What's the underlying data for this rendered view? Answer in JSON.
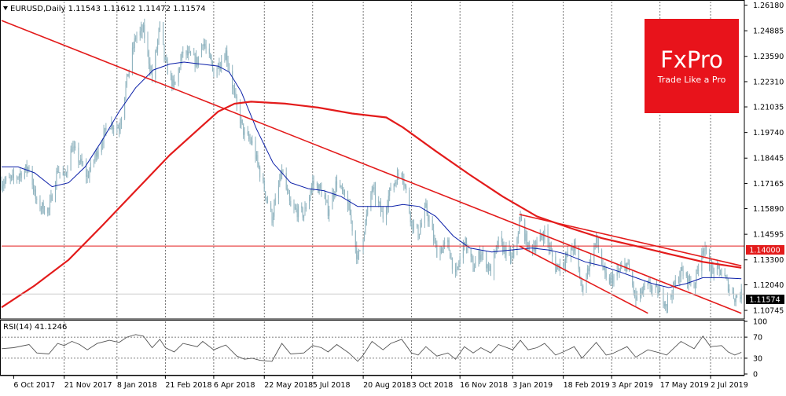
{
  "header": {
    "symbol_line": "EURUSD,Daily  1.11543 1.11612 1.11472 1.11574"
  },
  "logo": {
    "brand": "FxPro",
    "tagline": "Trade Like a Pro",
    "bg_color": "#e8131b"
  },
  "colors": {
    "candles": "#8fb3bf",
    "ma_fast": "#0a1ea8",
    "ma_slow": "#e31b1b",
    "trendlines": "#e31b1b",
    "rsi_line": "#555555",
    "grid": "#555555"
  },
  "price_labels": {
    "level": "1.14000",
    "current": "1.11574"
  },
  "chart_data": [
    {
      "type": "line",
      "name": "price",
      "title": "EURUSD,Daily",
      "grid": true,
      "y_axis_position": "right",
      "ylim": [
        1.1035,
        1.2636
      ],
      "y_ticks": [
        "1.26180",
        "1.24885",
        "1.23590",
        "1.22310",
        "1.21035",
        "1.19740",
        "1.18445",
        "1.17165",
        "1.15890",
        "1.14595",
        "1.13300",
        "1.12040",
        "1.10745"
      ],
      "x_tick_labels": [
        "6 Oct 2017",
        "21 Nov 2017",
        "8 Jan 2018",
        "21 Feb 2018",
        "6 Apr 2018",
        "22 May 2018",
        "5 Jul 2018",
        "20 Aug 2018",
        "3 Oct 2018",
        "16 Nov 2018",
        "3 Jan 2019",
        "18 Feb 2019",
        "3 Apr 2019",
        "17 May 2019",
        "2 Jul 2019"
      ],
      "x_range": [
        "2017-09-25",
        "2019-08-01"
      ],
      "price_path": [
        [
          "2017-09-25",
          1.172
        ],
        [
          "2017-10-06",
          1.174
        ],
        [
          "2017-10-20",
          1.18
        ],
        [
          "2017-10-27",
          1.161
        ],
        [
          "2017-11-07",
          1.158
        ],
        [
          "2017-11-15",
          1.179
        ],
        [
          "2017-11-21",
          1.174
        ],
        [
          "2017-11-28",
          1.19
        ],
        [
          "2017-12-05",
          1.183
        ],
        [
          "2017-12-12",
          1.175
        ],
        [
          "2017-12-21",
          1.188
        ],
        [
          "2018-01-01",
          1.202
        ],
        [
          "2018-01-10",
          1.2
        ],
        [
          "2018-01-17",
          1.224
        ],
        [
          "2018-01-25",
          1.246
        ],
        [
          "2018-02-01",
          1.249
        ],
        [
          "2018-02-09",
          1.225
        ],
        [
          "2018-02-16",
          1.251
        ],
        [
          "2018-02-21",
          1.232
        ],
        [
          "2018-03-01",
          1.22
        ],
        [
          "2018-03-09",
          1.238
        ],
        [
          "2018-03-22",
          1.233
        ],
        [
          "2018-03-27",
          1.244
        ],
        [
          "2018-04-06",
          1.228
        ],
        [
          "2018-04-13",
          1.234
        ],
        [
          "2018-04-17",
          1.238
        ],
        [
          "2018-04-27",
          1.21
        ],
        [
          "2018-05-04",
          1.196
        ],
        [
          "2018-05-11",
          1.192
        ],
        [
          "2018-05-18",
          1.177
        ],
        [
          "2018-05-29",
          1.154
        ],
        [
          "2018-06-07",
          1.178
        ],
        [
          "2018-06-15",
          1.159
        ],
        [
          "2018-06-27",
          1.156
        ],
        [
          "2018-07-05",
          1.172
        ],
        [
          "2018-07-13",
          1.168
        ],
        [
          "2018-07-19",
          1.158
        ],
        [
          "2018-07-27",
          1.173
        ],
        [
          "2018-08-07",
          1.159
        ],
        [
          "2018-08-15",
          1.133
        ],
        [
          "2018-08-20",
          1.146
        ],
        [
          "2018-08-28",
          1.169
        ],
        [
          "2018-09-07",
          1.155
        ],
        [
          "2018-09-14",
          1.169
        ],
        [
          "2018-09-24",
          1.179
        ],
        [
          "2018-10-03",
          1.152
        ],
        [
          "2018-10-09",
          1.146
        ],
        [
          "2018-10-16",
          1.159
        ],
        [
          "2018-10-26",
          1.137
        ],
        [
          "2018-11-05",
          1.141
        ],
        [
          "2018-11-12",
          1.124
        ],
        [
          "2018-11-20",
          1.143
        ],
        [
          "2018-11-28",
          1.129
        ],
        [
          "2018-12-05",
          1.137
        ],
        [
          "2018-12-14",
          1.127
        ],
        [
          "2018-12-21",
          1.142
        ],
        [
          "2019-01-03",
          1.133
        ],
        [
          "2019-01-10",
          1.154
        ],
        [
          "2019-01-17",
          1.139
        ],
        [
          "2019-01-25",
          1.141
        ],
        [
          "2019-02-01",
          1.147
        ],
        [
          "2019-02-11",
          1.129
        ],
        [
          "2019-02-18",
          1.132
        ],
        [
          "2019-02-28",
          1.14
        ],
        [
          "2019-03-07",
          1.118
        ],
        [
          "2019-03-20",
          1.143
        ],
        [
          "2019-03-29",
          1.122
        ],
        [
          "2019-04-03",
          1.123
        ],
        [
          "2019-04-17",
          1.131
        ],
        [
          "2019-04-25",
          1.113
        ],
        [
          "2019-05-06",
          1.12
        ],
        [
          "2019-05-17",
          1.116
        ],
        [
          "2019-05-23",
          1.111
        ],
        [
          "2019-06-05",
          1.127
        ],
        [
          "2019-06-17",
          1.12
        ],
        [
          "2019-06-25",
          1.14
        ],
        [
          "2019-07-02",
          1.128
        ],
        [
          "2019-07-12",
          1.127
        ],
        [
          "2019-07-18",
          1.12
        ],
        [
          "2019-07-24",
          1.114
        ],
        [
          "2019-07-30",
          1.1157
        ]
      ],
      "series": [
        {
          "key": "ma_fast",
          "points": [
            [
              "2017-09-25",
              1.18
            ],
            [
              "2017-10-10",
              1.18
            ],
            [
              "2017-10-25",
              1.177
            ],
            [
              "2017-11-10",
              1.17
            ],
            [
              "2017-11-25",
              1.172
            ],
            [
              "2017-12-10",
              1.18
            ],
            [
              "2017-12-25",
              1.193
            ],
            [
              "2018-01-10",
              1.208
            ],
            [
              "2018-01-25",
              1.22
            ],
            [
              "2018-02-10",
              1.229
            ],
            [
              "2018-02-25",
              1.232
            ],
            [
              "2018-03-10",
              1.233
            ],
            [
              "2018-03-25",
              1.232
            ],
            [
              "2018-04-10",
              1.231
            ],
            [
              "2018-04-20",
              1.228
            ],
            [
              "2018-05-01",
              1.218
            ],
            [
              "2018-05-15",
              1.199
            ],
            [
              "2018-05-30",
              1.182
            ],
            [
              "2018-06-15",
              1.172
            ],
            [
              "2018-07-01",
              1.169
            ],
            [
              "2018-07-15",
              1.168
            ],
            [
              "2018-07-31",
              1.165
            ],
            [
              "2018-08-15",
              1.16
            ],
            [
              "2018-08-30",
              1.16
            ],
            [
              "2018-09-15",
              1.16
            ],
            [
              "2018-09-25",
              1.161
            ],
            [
              "2018-10-10",
              1.16
            ],
            [
              "2018-10-25",
              1.155
            ],
            [
              "2018-11-10",
              1.145
            ],
            [
              "2018-11-25",
              1.139
            ],
            [
              "2018-12-15",
              1.137
            ],
            [
              "2019-01-01",
              1.138
            ],
            [
              "2019-01-20",
              1.139
            ],
            [
              "2019-02-05",
              1.138
            ],
            [
              "2019-02-20",
              1.136
            ],
            [
              "2019-03-10",
              1.132
            ],
            [
              "2019-03-25",
              1.13
            ],
            [
              "2019-04-10",
              1.127
            ],
            [
              "2019-04-25",
              1.124
            ],
            [
              "2019-05-10",
              1.121
            ],
            [
              "2019-05-25",
              1.119
            ],
            [
              "2019-06-10",
              1.121
            ],
            [
              "2019-06-25",
              1.124
            ],
            [
              "2019-07-10",
              1.124
            ],
            [
              "2019-07-30",
              1.1235
            ]
          ]
        },
        {
          "key": "ma_slow",
          "points": [
            [
              "2017-09-25",
              1.109
            ],
            [
              "2017-10-25",
              1.12
            ],
            [
              "2017-11-25",
              1.133
            ],
            [
              "2017-12-25",
              1.15
            ],
            [
              "2018-01-25",
              1.168
            ],
            [
              "2018-02-25",
              1.186
            ],
            [
              "2018-03-25",
              1.2
            ],
            [
              "2018-04-10",
              1.208
            ],
            [
              "2018-04-25",
              1.212
            ],
            [
              "2018-05-10",
              1.213
            ],
            [
              "2018-06-10",
              1.212
            ],
            [
              "2018-07-10",
              1.21
            ],
            [
              "2018-08-10",
              1.207
            ],
            [
              "2018-09-10",
              1.205
            ],
            [
              "2018-09-25",
              1.2
            ],
            [
              "2018-10-25",
              1.188
            ],
            [
              "2018-11-25",
              1.176
            ],
            [
              "2018-12-25",
              1.165
            ],
            [
              "2019-01-25",
              1.155
            ],
            [
              "2019-02-25",
              1.149
            ],
            [
              "2019-03-25",
              1.144
            ],
            [
              "2019-04-25",
              1.14
            ],
            [
              "2019-05-25",
              1.136
            ],
            [
              "2019-06-25",
              1.132
            ],
            [
              "2019-07-30",
              1.129
            ]
          ]
        },
        {
          "key": "trendlines",
          "segments": [
            [
              [
                "2017-09-25",
                1.254
              ],
              [
                "2019-07-30",
                1.106
              ]
            ],
            [
              [
                "2019-01-09",
                1.156
              ],
              [
                "2019-07-30",
                1.13
              ]
            ],
            [
              [
                "2019-01-09",
                1.14
              ],
              [
                "2019-05-06",
                1.106
              ]
            ]
          ]
        }
      ],
      "level_line": 1.14,
      "current_price": 1.11574
    },
    {
      "type": "line",
      "name": "RSI",
      "title": "RSI(14) 41.1246",
      "ylim": [
        0,
        100
      ],
      "y_ticks": [
        "100",
        "70",
        "30",
        "0"
      ],
      "levels": [
        30,
        70
      ],
      "points": [
        [
          "2017-09-25",
          48
        ],
        [
          "2017-10-06",
          50
        ],
        [
          "2017-10-20",
          56
        ],
        [
          "2017-10-27",
          40
        ],
        [
          "2017-11-07",
          38
        ],
        [
          "2017-11-15",
          58
        ],
        [
          "2017-11-21",
          54
        ],
        [
          "2017-11-28",
          62
        ],
        [
          "2017-12-05",
          56
        ],
        [
          "2017-12-12",
          46
        ],
        [
          "2017-12-21",
          58
        ],
        [
          "2018-01-01",
          64
        ],
        [
          "2018-01-10",
          60
        ],
        [
          "2018-01-17",
          70
        ],
        [
          "2018-01-25",
          75
        ],
        [
          "2018-02-01",
          72
        ],
        [
          "2018-02-09",
          50
        ],
        [
          "2018-02-16",
          66
        ],
        [
          "2018-02-21",
          50
        ],
        [
          "2018-03-01",
          42
        ],
        [
          "2018-03-09",
          58
        ],
        [
          "2018-03-22",
          52
        ],
        [
          "2018-03-27",
          62
        ],
        [
          "2018-04-06",
          46
        ],
        [
          "2018-04-13",
          52
        ],
        [
          "2018-04-17",
          55
        ],
        [
          "2018-04-27",
          34
        ],
        [
          "2018-05-04",
          28
        ],
        [
          "2018-05-11",
          30
        ],
        [
          "2018-05-18",
          26
        ],
        [
          "2018-05-29",
          24
        ],
        [
          "2018-06-07",
          58
        ],
        [
          "2018-06-15",
          38
        ],
        [
          "2018-06-27",
          40
        ],
        [
          "2018-07-05",
          54
        ],
        [
          "2018-07-13",
          50
        ],
        [
          "2018-07-19",
          42
        ],
        [
          "2018-07-27",
          56
        ],
        [
          "2018-08-07",
          40
        ],
        [
          "2018-08-15",
          24
        ],
        [
          "2018-08-20",
          36
        ],
        [
          "2018-08-28",
          62
        ],
        [
          "2018-09-07",
          46
        ],
        [
          "2018-09-14",
          58
        ],
        [
          "2018-09-24",
          66
        ],
        [
          "2018-10-03",
          40
        ],
        [
          "2018-10-09",
          36
        ],
        [
          "2018-10-16",
          52
        ],
        [
          "2018-10-26",
          34
        ],
        [
          "2018-11-05",
          40
        ],
        [
          "2018-11-12",
          28
        ],
        [
          "2018-11-20",
          52
        ],
        [
          "2018-11-28",
          40
        ],
        [
          "2018-12-05",
          50
        ],
        [
          "2018-12-14",
          40
        ],
        [
          "2018-12-21",
          56
        ],
        [
          "2019-01-03",
          46
        ],
        [
          "2019-01-10",
          64
        ],
        [
          "2019-01-17",
          46
        ],
        [
          "2019-01-25",
          50
        ],
        [
          "2019-02-01",
          58
        ],
        [
          "2019-02-11",
          36
        ],
        [
          "2019-02-18",
          42
        ],
        [
          "2019-02-28",
          52
        ],
        [
          "2019-03-07",
          30
        ],
        [
          "2019-03-20",
          60
        ],
        [
          "2019-03-29",
          36
        ],
        [
          "2019-04-03",
          38
        ],
        [
          "2019-04-17",
          52
        ],
        [
          "2019-04-25",
          32
        ],
        [
          "2019-05-06",
          46
        ],
        [
          "2019-05-17",
          40
        ],
        [
          "2019-05-23",
          36
        ],
        [
          "2019-06-05",
          62
        ],
        [
          "2019-06-17",
          48
        ],
        [
          "2019-06-25",
          72
        ],
        [
          "2019-07-02",
          52
        ],
        [
          "2019-07-12",
          54
        ],
        [
          "2019-07-18",
          42
        ],
        [
          "2019-07-24",
          36
        ],
        [
          "2019-07-30",
          41.1246
        ]
      ]
    }
  ]
}
